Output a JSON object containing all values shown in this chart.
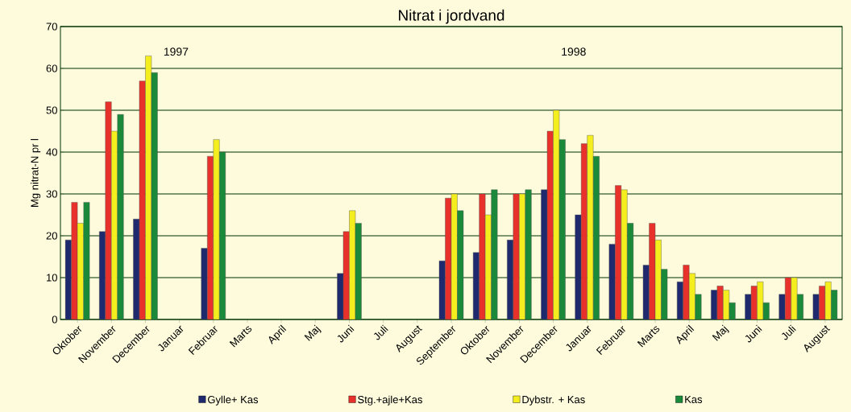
{
  "chart_data": {
    "type": "bar",
    "title": "Nitrat i jordvand",
    "ylabel": "Mg nitrat-N pr l",
    "categories": [
      "Oktober",
      "November",
      "December",
      "Januar",
      "Februar",
      "Marts",
      "April",
      "Maj",
      "Juni",
      "Juli",
      "August",
      "September",
      "Oktober",
      "November",
      "December",
      "Januar",
      "Februar",
      "Marts",
      "April",
      "Maj",
      "Juni",
      "Juli",
      "August"
    ],
    "series": [
      {
        "name": "Gylle+ Kas",
        "color": "#1f2a6e",
        "values": [
          19,
          21,
          24,
          null,
          17,
          null,
          null,
          null,
          11,
          null,
          null,
          14,
          16,
          19,
          31,
          25,
          18,
          13,
          9,
          7,
          6,
          6,
          6
        ]
      },
      {
        "name": "Stg.+ajle+Kas",
        "color": "#e8312a",
        "values": [
          28,
          52,
          57,
          null,
          39,
          null,
          null,
          null,
          21,
          null,
          null,
          29,
          30,
          30,
          45,
          42,
          32,
          23,
          13,
          8,
          8,
          10,
          8
        ]
      },
      {
        "name": "Dybstr. + Kas",
        "color": "#f5ee1f",
        "values": [
          23,
          45,
          63,
          null,
          43,
          null,
          null,
          null,
          26,
          null,
          null,
          30,
          25,
          30,
          50,
          44,
          31,
          19,
          11,
          7,
          9,
          10,
          9
        ]
      },
      {
        "name": "Kas",
        "color": "#1a8a3a",
        "values": [
          28,
          49,
          59,
          null,
          40,
          null,
          null,
          null,
          23,
          null,
          null,
          26,
          31,
          31,
          43,
          39,
          23,
          12,
          6,
          4,
          4,
          6,
          7
        ]
      }
    ],
    "annotations": [
      "1997",
      "1998"
    ],
    "ylim": [
      0,
      70
    ],
    "yticks": [
      0,
      10,
      20,
      30,
      40,
      50,
      60,
      70
    ],
    "grid": "y",
    "legend": "bottom"
  }
}
